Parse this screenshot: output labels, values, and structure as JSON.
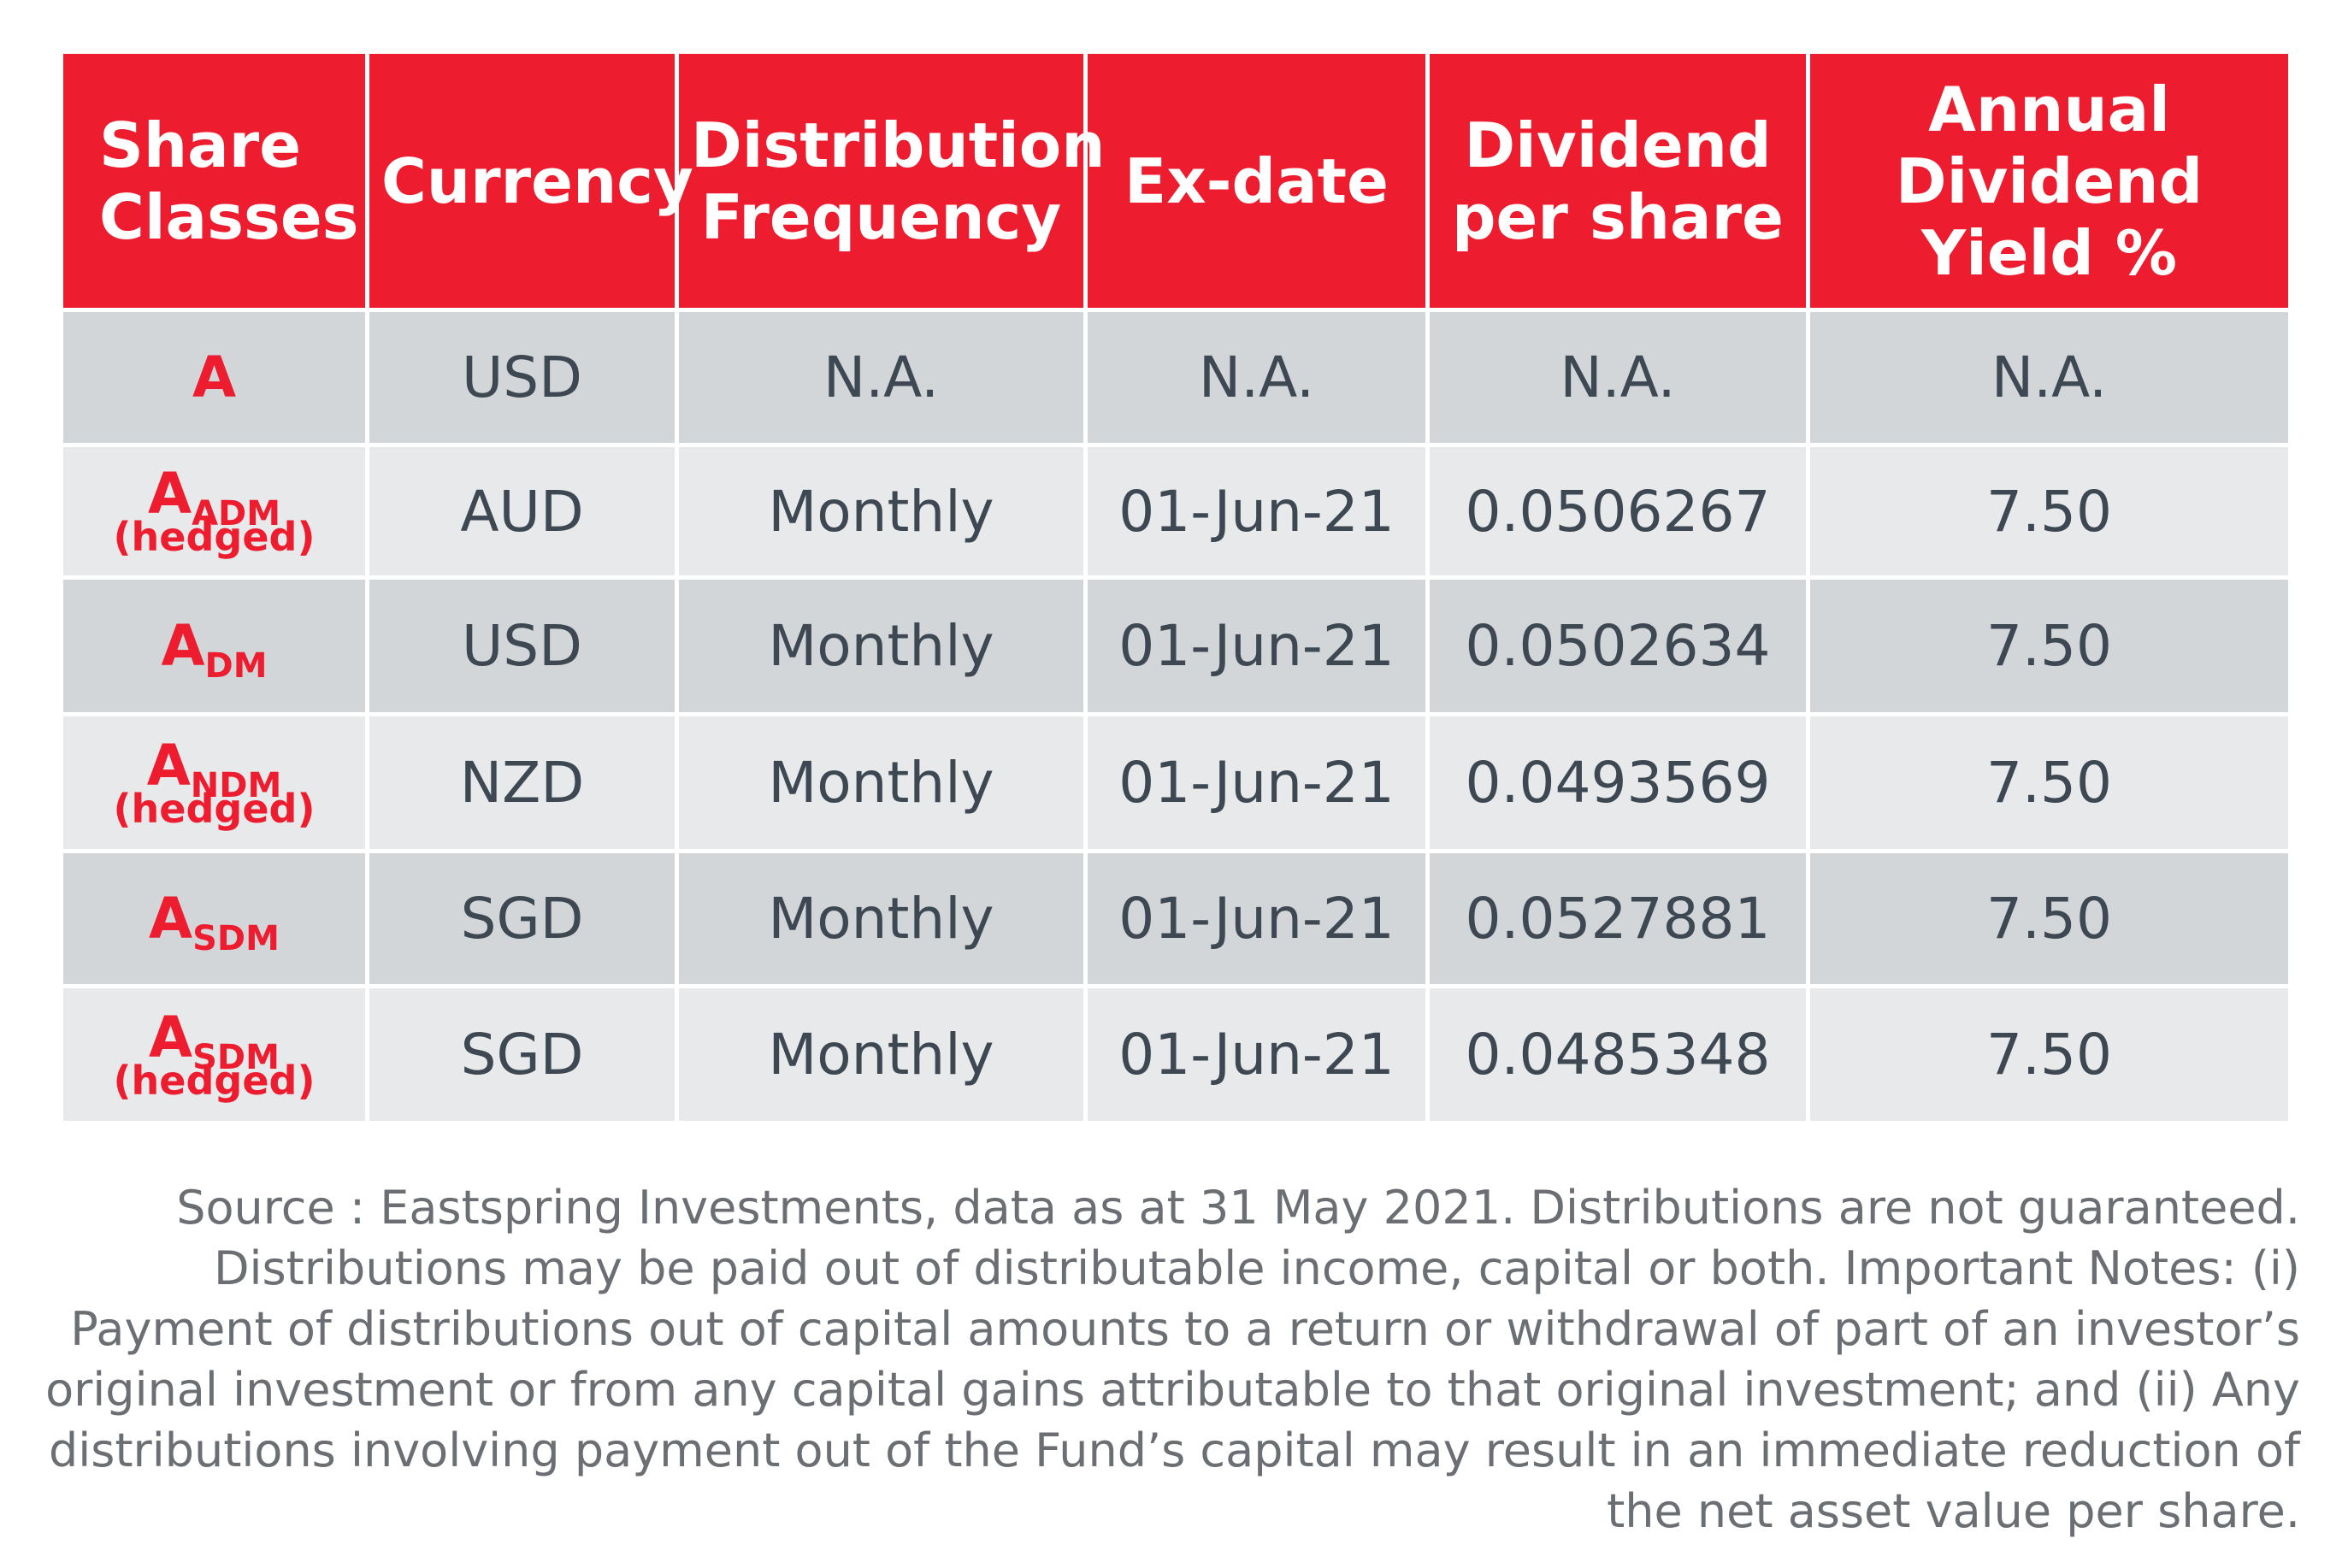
{
  "table": {
    "headers": [
      "Share Classes",
      "Currency",
      "Distribution Frequency",
      "Ex-date",
      "Dividend per share",
      "Annual Dividend Yield %"
    ],
    "rows": [
      {
        "share_main": "A",
        "share_sub": "",
        "share_hedged": "",
        "currency": "USD",
        "frequency": "N.A.",
        "ex_date": "N.A.",
        "dividend": "N.A.",
        "yield": "N.A."
      },
      {
        "share_main": "A",
        "share_sub": "ADM",
        "share_hedged": "(hedged)",
        "currency": "AUD",
        "frequency": "Monthly",
        "ex_date": "01-Jun-21",
        "dividend": "0.0506267",
        "yield": "7.50"
      },
      {
        "share_main": "A",
        "share_sub": "DM",
        "share_hedged": "",
        "currency": "USD",
        "frequency": "Monthly",
        "ex_date": "01-Jun-21",
        "dividend": "0.0502634",
        "yield": "7.50"
      },
      {
        "share_main": "A",
        "share_sub": "NDM",
        "share_hedged": "(hedged)",
        "currency": "NZD",
        "frequency": "Monthly",
        "ex_date": "01-Jun-21",
        "dividend": "0.0493569",
        "yield": "7.50"
      },
      {
        "share_main": "A",
        "share_sub": "SDM",
        "share_hedged": "",
        "currency": "SGD",
        "frequency": "Monthly",
        "ex_date": "01-Jun-21",
        "dividend": "0.0527881",
        "yield": "7.50"
      },
      {
        "share_main": "A",
        "share_sub": "SDM",
        "share_hedged": "(hedged)",
        "currency": "SGD",
        "frequency": "Monthly",
        "ex_date": "01-Jun-21",
        "dividend": "0.0485348",
        "yield": "7.50"
      }
    ]
  },
  "footnote": "Source : Eastspring Investments, data as at 31 May 2021. Distributions are not guaranteed. Distributions may be paid out of distributable income, capital or both. Important Notes: (i) Payment of distributions out of capital amounts to a return or withdrawal of part of an investor’s original investment or from any capital gains attributable to that original investment; and (ii) Any distributions involving payment out of the Fund’s capital may result in an immediate reduction of the net asset value per share.",
  "colors": {
    "header_bg": "#ed1c2e",
    "share_class_text": "#ed1c2e",
    "row_dark": "#d3d6d9",
    "row_light": "#e7e9eb",
    "body_text": "#3d4852",
    "footnote_text": "#6b6f73"
  }
}
